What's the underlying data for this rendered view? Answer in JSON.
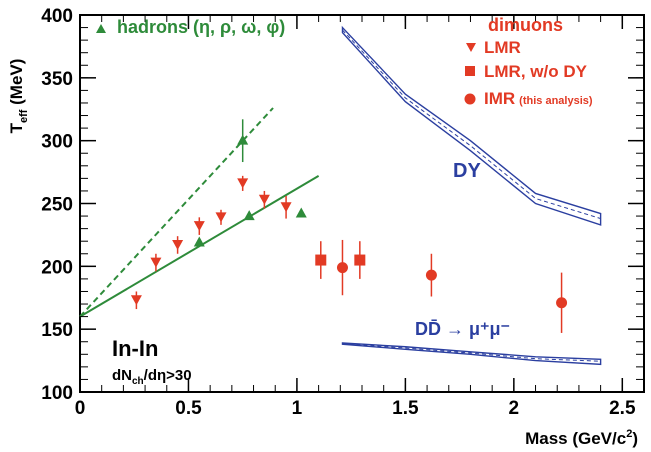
{
  "chart_data": {
    "type": "scatter",
    "xlabel": "Mass (GeV/c",
    "xlabel_sup": "2",
    "xlabel_end": ")",
    "ylabel_main": "T",
    "ylabel_sub": "eff",
    "ylabel_unit": " (MeV)",
    "xlim": [
      0,
      2.6
    ],
    "ylim": [
      100,
      400
    ],
    "x_ticks": [
      0,
      0.5,
      1,
      1.5,
      2,
      2.5
    ],
    "x_tick_labels": [
      "0",
      "0.5",
      "1",
      "1.5",
      "2",
      "2.5"
    ],
    "y_ticks": [
      100,
      150,
      200,
      250,
      300,
      350,
      400
    ],
    "y_tick_labels": [
      "100",
      "150",
      "200",
      "250",
      "300",
      "350",
      "400"
    ],
    "colors": {
      "red": "#e23a24",
      "green": "#2e8b3a",
      "blue": "#2b3fa0"
    },
    "legend": {
      "green_title": "hadrons (η, ρ, ω, φ)",
      "red_title": "dimuons",
      "entries": [
        {
          "marker": "triangle-down",
          "label": "LMR",
          "small": ""
        },
        {
          "marker": "square",
          "label": "LMR, w/o DY",
          "small": ""
        },
        {
          "marker": "circle",
          "label": "IMR",
          "small": "(this analysis)"
        }
      ]
    },
    "annotations": {
      "system": "In-In",
      "cut_main": "dN",
      "cut_sub": "ch",
      "cut_rest": "/dη>30",
      "dy_label": "DY",
      "dd_label": "DD̄ → μ⁺μ⁻"
    },
    "series": [
      {
        "name": "hadrons",
        "marker": "triangle-up",
        "color": "#2e8b3a",
        "points": [
          {
            "x": 0.55,
            "y": 219,
            "err": 0
          },
          {
            "x": 0.75,
            "y": 300,
            "err": 17
          },
          {
            "x": 0.78,
            "y": 240,
            "err": 0
          },
          {
            "x": 1.02,
            "y": 242,
            "err": 0
          }
        ]
      },
      {
        "name": "LMR",
        "marker": "triangle-down",
        "color": "#e23a24",
        "points": [
          {
            "x": 0.26,
            "y": 173,
            "err": 7
          },
          {
            "x": 0.35,
            "y": 203,
            "err": 7
          },
          {
            "x": 0.45,
            "y": 217,
            "err": 7
          },
          {
            "x": 0.55,
            "y": 232,
            "err": 7
          },
          {
            "x": 0.65,
            "y": 239,
            "err": 6
          },
          {
            "x": 0.75,
            "y": 266,
            "err": 6
          },
          {
            "x": 0.85,
            "y": 253,
            "err": 7
          },
          {
            "x": 0.95,
            "y": 247,
            "err": 9
          }
        ]
      },
      {
        "name": "LMR, w/o DY",
        "marker": "square",
        "color": "#e23a24",
        "points": [
          {
            "x": 1.11,
            "y": 205,
            "err": 15
          },
          {
            "x": 1.29,
            "y": 205,
            "err": 15
          }
        ]
      },
      {
        "name": "IMR (this analysis)",
        "marker": "circle",
        "color": "#e23a24",
        "points": [
          {
            "x": 1.21,
            "y": 199,
            "err": 22
          },
          {
            "x": 1.62,
            "y": 193,
            "err": 17
          },
          {
            "x": 2.22,
            "y": 171,
            "err": 24
          }
        ]
      }
    ],
    "fit_lines": [
      {
        "name": "hadron-fit",
        "style": "dashed",
        "color": "#2e8b3a",
        "x": [
          0,
          0.89
        ],
        "y": [
          160,
          326
        ]
      },
      {
        "name": "lmr-fit",
        "style": "solid",
        "color": "#2e8b3a",
        "x": [
          0,
          1.1
        ],
        "y": [
          160,
          272
        ]
      }
    ],
    "bands": [
      {
        "name": "DY",
        "color": "#2b3fa0",
        "x": [
          1.21,
          1.5,
          1.8,
          2.1,
          2.4
        ],
        "upper": [
          390,
          337,
          300,
          258,
          242
        ],
        "center": [
          388,
          334,
          296,
          254,
          238
        ],
        "lower": [
          386,
          331,
          292,
          250,
          233
        ]
      },
      {
        "name": "DD",
        "color": "#2b3fa0",
        "x": [
          1.21,
          1.5,
          1.8,
          2.1,
          2.4
        ],
        "upper": [
          139,
          136,
          132,
          128,
          126
        ],
        "center": [
          138.5,
          135,
          131,
          126.5,
          124.5
        ],
        "lower": [
          138,
          134,
          130,
          125,
          122
        ]
      }
    ]
  }
}
